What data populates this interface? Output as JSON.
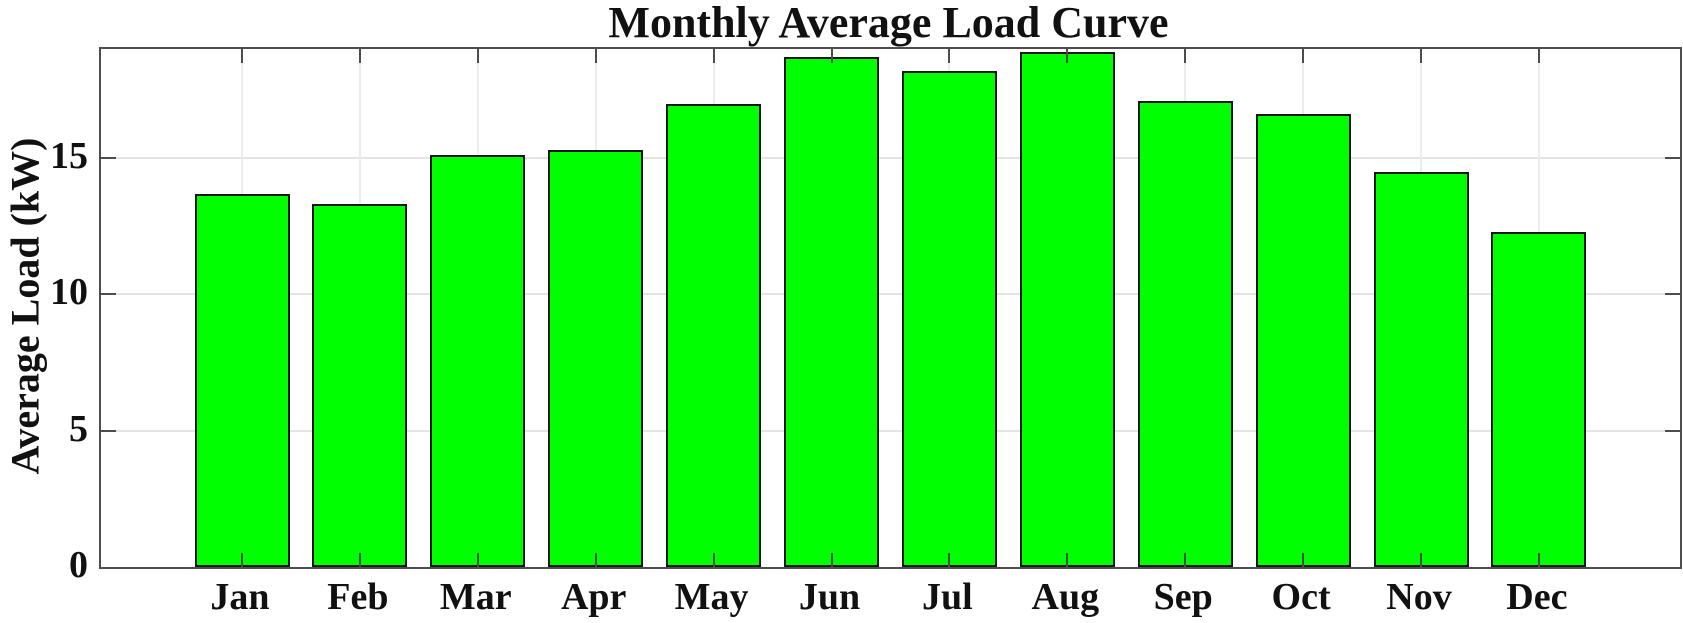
{
  "chart_data": {
    "type": "bar",
    "title": "Monthly Average Load Curve",
    "xlabel": "",
    "ylabel": "Average Load (kW)",
    "categories": [
      "Jan",
      "Feb",
      "Mar",
      "Apr",
      "May",
      "Jun",
      "Jul",
      "Aug",
      "Sep",
      "Oct",
      "Nov",
      "Dec"
    ],
    "values": [
      13.7,
      13.3,
      15.1,
      15.3,
      17.0,
      18.7,
      18.2,
      18.9,
      17.1,
      16.6,
      14.5,
      12.3
    ],
    "ylim": [
      0,
      19
    ],
    "yticks": [
      0,
      5,
      10,
      15
    ],
    "grid": true,
    "legend": "none",
    "bar_color": "#00ff00",
    "bar_edge_color": "#161616",
    "axis_color": "#4d4d4d",
    "grid_color": "#e4e4e4",
    "text_color": "#111111"
  }
}
